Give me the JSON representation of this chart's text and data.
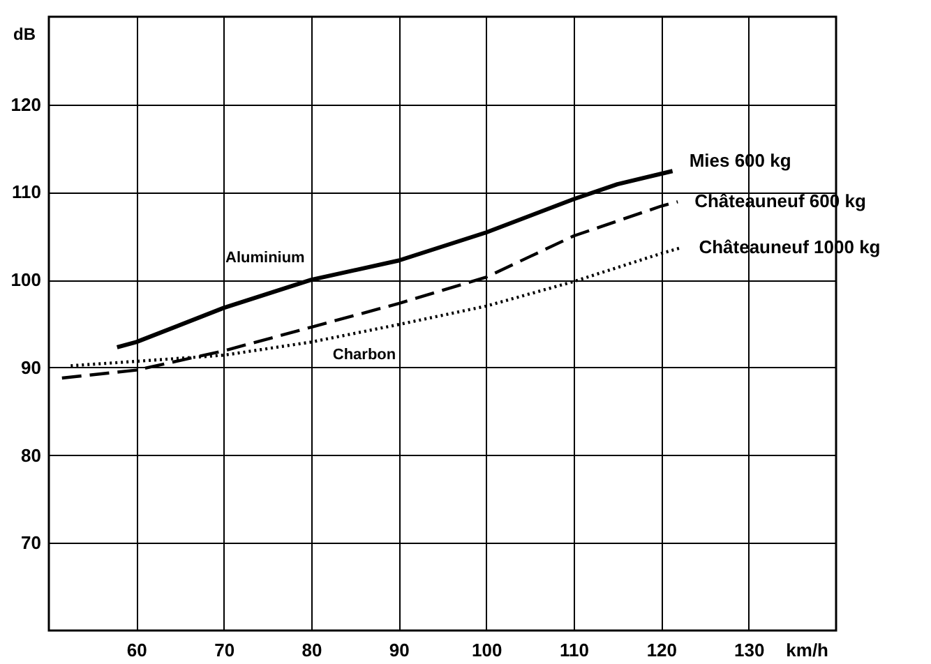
{
  "chart_data": {
    "type": "line",
    "xlabel": "km/h",
    "ylabel": "dB",
    "xlim": [
      50,
      140
    ],
    "xticks": [
      60,
      70,
      80,
      90,
      100,
      110,
      120,
      130
    ],
    "ylim": [
      60,
      130
    ],
    "yticks": [
      70,
      80,
      90,
      100,
      110,
      120
    ],
    "grid": true,
    "legend": false,
    "marker": "none",
    "series": [
      {
        "name": "Mies  600 kg",
        "color": "#000000",
        "line_style": "solid",
        "x": [
          57.8,
          60,
          70,
          80,
          90,
          100,
          110,
          115,
          121.3
        ],
        "values": [
          92.3,
          92.9,
          96.8,
          100,
          102.2,
          105.4,
          109.2,
          110.9,
          112.4
        ]
      },
      {
        "name": "Châteauneuf  600 kg",
        "color": "#000000",
        "line_style": "dashed",
        "x": [
          51.5,
          60,
          70,
          80,
          90,
          100,
          110,
          120,
          121.9
        ],
        "values": [
          88.8,
          89.7,
          91.9,
          94.6,
          97.3,
          100.3,
          105,
          108.4,
          108.9
        ]
      },
      {
        "name": "Châteauneuf  1000 kg",
        "color": "#000000",
        "line_style": "dotted",
        "x": [
          52.5,
          60,
          70,
          80,
          90,
          100,
          110,
          120,
          122.4
        ],
        "values": [
          90.2,
          90.7,
          91.4,
          92.9,
          94.9,
          97,
          99.8,
          103,
          103.7
        ]
      }
    ],
    "annotations": [
      {
        "text": "Aluminium",
        "x": 76,
        "y": 98.5
      },
      {
        "text": "Charbon",
        "x": 80,
        "y": 93.5
      }
    ]
  }
}
